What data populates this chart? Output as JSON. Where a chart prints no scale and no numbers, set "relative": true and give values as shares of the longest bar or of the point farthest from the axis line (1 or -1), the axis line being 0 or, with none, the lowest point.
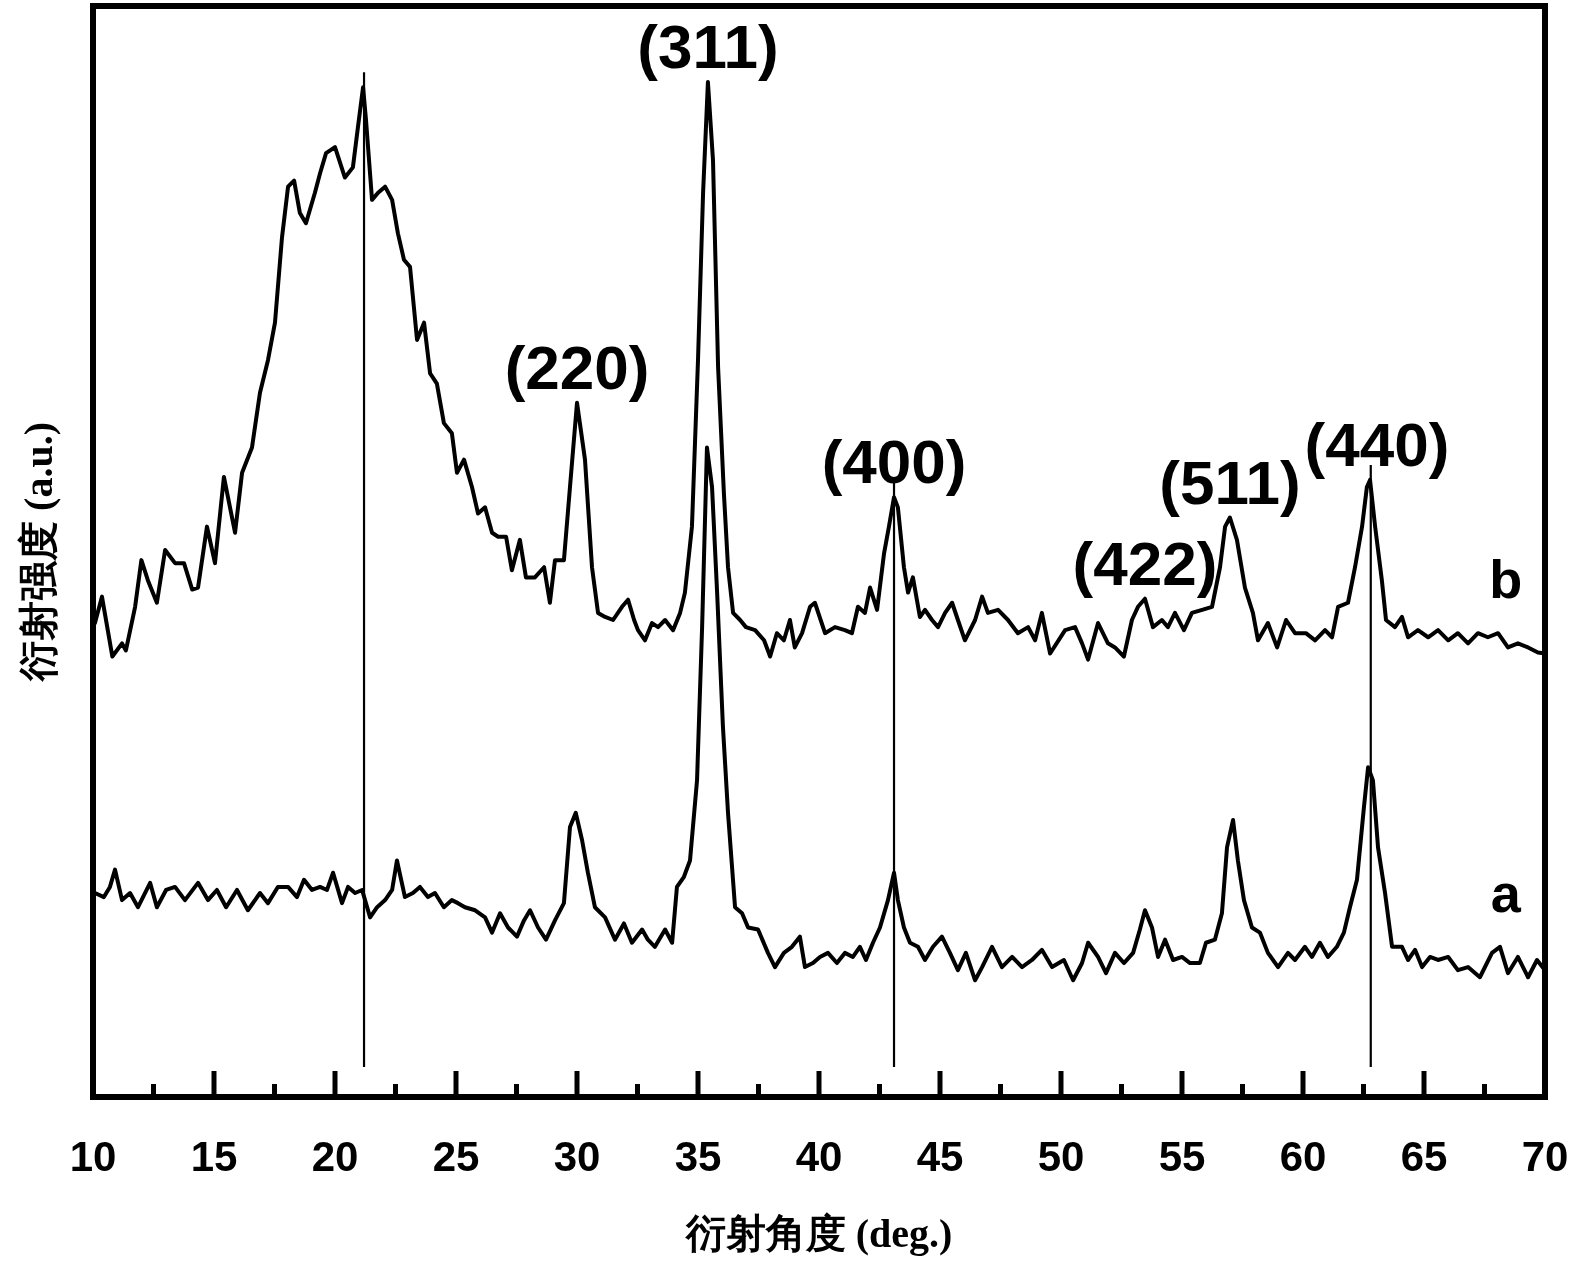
{
  "chart_data": {
    "type": "line",
    "xlabel": "衍射角度 (deg.)",
    "ylabel": "衍射强度 (a.u.)",
    "relative": true,
    "xlim": [
      10,
      70
    ],
    "xticks": [
      10,
      {
        "value": 12.5,
        "label": null
      },
      15,
      {
        "value": 17.5,
        "label": null
      },
      20,
      {
        "value": 22.5,
        "label": null
      },
      25,
      {
        "value": 27.5,
        "label": null
      },
      30,
      {
        "value": 32.5,
        "label": null
      },
      35,
      {
        "value": 37.5,
        "label": null
      },
      40,
      {
        "value": 42.5,
        "label": null
      },
      45,
      {
        "value": 47.5,
        "label": null
      },
      50,
      {
        "value": 52.5,
        "label": null
      },
      55,
      {
        "value": 57.5,
        "label": null
      },
      60,
      {
        "value": 62.5,
        "label": null
      },
      65,
      {
        "value": 67.5,
        "label": null
      },
      70
    ],
    "series": [
      {
        "name": "b",
        "color": "#000000",
        "x": [
          10.08,
          10.37,
          10.8,
          11.2,
          11.36,
          11.74,
          12.0,
          12.27,
          12.64,
          12.98,
          13.39,
          13.76,
          14.1,
          14.34,
          14.71,
          15.04,
          15.41,
          15.87,
          16.16,
          16.57,
          16.9,
          17.23,
          17.52,
          17.81,
          18.06,
          18.31,
          18.55,
          18.8,
          19.17,
          19.38,
          19.63,
          20.0,
          20.41,
          20.74,
          20.95,
          21.16,
          21.28,
          21.53,
          21.78,
          22.07,
          22.36,
          22.6,
          22.85,
          23.1,
          23.39,
          23.68,
          23.93,
          24.21,
          24.5,
          24.83,
          25.04,
          25.33,
          25.66,
          25.91,
          26.2,
          26.49,
          26.74,
          27.07,
          27.31,
          27.64,
          27.89,
          28.26,
          28.64,
          28.88,
          29.09,
          29.46,
          29.71,
          30.0,
          30.33,
          30.62,
          30.87,
          31.16,
          31.49,
          31.86,
          32.11,
          32.36,
          32.52,
          32.81,
          33.1,
          33.35,
          33.64,
          33.97,
          34.26,
          34.46,
          34.75,
          35.0,
          35.21,
          35.41,
          35.62,
          35.83,
          36.07,
          36.24,
          36.45,
          36.74,
          36.98,
          37.36,
          37.73,
          37.98,
          38.26,
          38.55,
          38.8,
          39.0,
          39.3,
          39.63,
          39.83,
          40.25,
          40.66,
          41.07,
          41.36,
          41.61,
          41.9,
          42.11,
          42.4,
          42.69,
          42.89,
          43.1,
          43.26,
          43.51,
          43.68,
          43.88,
          44.17,
          44.38,
          44.67,
          44.92,
          45.21,
          45.5,
          45.74,
          46.03,
          46.45,
          46.74,
          46.98,
          47.4,
          47.81,
          48.22,
          48.64,
          48.93,
          49.21,
          49.55,
          50.17,
          50.58,
          50.87,
          51.12,
          51.53,
          51.94,
          52.23,
          52.6,
          52.93,
          53.18,
          53.47,
          53.8,
          54.17,
          54.42,
          54.71,
          55.08,
          55.41,
          55.83,
          56.24,
          56.57,
          56.78,
          56.98,
          57.27,
          57.6,
          57.93,
          58.14,
          58.55,
          58.93,
          59.3,
          59.67,
          60.12,
          60.5,
          60.91,
          61.2,
          61.45,
          61.86,
          62.15,
          62.44,
          62.64,
          62.77,
          62.98,
          63.26,
          63.43,
          63.8,
          64.09,
          64.34,
          64.75,
          65.17,
          65.58,
          66.0,
          66.4,
          66.82,
          67.23,
          67.64,
          68.06,
          68.47,
          68.88,
          69.3,
          69.71,
          70.0
        ],
        "values": [
          0.467,
          0.493,
          0.434,
          0.447,
          0.44,
          0.483,
          0.529,
          0.509,
          0.487,
          0.539,
          0.526,
          0.526,
          0.5,
          0.502,
          0.562,
          0.526,
          0.611,
          0.556,
          0.615,
          0.64,
          0.694,
          0.726,
          0.763,
          0.847,
          0.897,
          0.903,
          0.871,
          0.861,
          0.891,
          0.91,
          0.93,
          0.936,
          0.906,
          0.916,
          0.956,
          0.995,
          0.963,
          0.884,
          0.891,
          0.897,
          0.884,
          0.851,
          0.825,
          0.818,
          0.746,
          0.763,
          0.713,
          0.703,
          0.664,
          0.654,
          0.615,
          0.628,
          0.601,
          0.575,
          0.581,
          0.556,
          0.552,
          0.552,
          0.519,
          0.549,
          0.512,
          0.512,
          0.522,
          0.487,
          0.529,
          0.529,
          0.601,
          0.684,
          0.628,
          0.522,
          0.477,
          0.473,
          0.47,
          0.483,
          0.49,
          0.47,
          0.46,
          0.45,
          0.467,
          0.463,
          0.47,
          0.46,
          0.477,
          0.497,
          0.562,
          0.726,
          0.891,
          1.0,
          0.923,
          0.719,
          0.595,
          0.522,
          0.477,
          0.47,
          0.463,
          0.46,
          0.45,
          0.434,
          0.457,
          0.45,
          0.47,
          0.443,
          0.457,
          0.483,
          0.487,
          0.457,
          0.463,
          0.46,
          0.457,
          0.483,
          0.477,
          0.502,
          0.48,
          0.536,
          0.562,
          0.591,
          0.581,
          0.522,
          0.497,
          0.512,
          0.473,
          0.48,
          0.47,
          0.463,
          0.477,
          0.487,
          0.47,
          0.45,
          0.47,
          0.493,
          0.477,
          0.48,
          0.47,
          0.457,
          0.463,
          0.45,
          0.477,
          0.437,
          0.46,
          0.463,
          0.447,
          0.431,
          0.467,
          0.447,
          0.443,
          0.434,
          0.47,
          0.483,
          0.491,
          0.463,
          0.47,
          0.463,
          0.477,
          0.46,
          0.477,
          0.48,
          0.483,
          0.522,
          0.562,
          0.571,
          0.549,
          0.502,
          0.477,
          0.45,
          0.467,
          0.443,
          0.47,
          0.457,
          0.457,
          0.45,
          0.46,
          0.453,
          0.483,
          0.487,
          0.522,
          0.562,
          0.601,
          0.608,
          0.562,
          0.509,
          0.47,
          0.463,
          0.473,
          0.453,
          0.46,
          0.453,
          0.46,
          0.45,
          0.457,
          0.447,
          0.457,
          0.453,
          0.457,
          0.443,
          0.447,
          0.443,
          0.438,
          0.437
        ]
      },
      {
        "name": "a",
        "color": "#000000",
        "x": [
          10.08,
          10.45,
          10.7,
          10.91,
          11.2,
          11.53,
          11.86,
          12.36,
          12.64,
          13.02,
          13.39,
          13.8,
          14.34,
          14.75,
          15.12,
          15.5,
          15.95,
          16.4,
          16.9,
          17.23,
          17.64,
          18.06,
          18.43,
          18.72,
          19.05,
          19.38,
          19.67,
          19.92,
          20.29,
          20.54,
          20.83,
          21.12,
          21.45,
          21.74,
          22.07,
          22.36,
          22.56,
          22.89,
          23.22,
          23.51,
          23.84,
          24.13,
          24.5,
          24.83,
          25.08,
          25.37,
          25.79,
          26.2,
          26.49,
          26.82,
          27.15,
          27.52,
          27.81,
          28.06,
          28.39,
          28.72,
          29.09,
          29.46,
          29.71,
          29.95,
          30.21,
          30.45,
          30.74,
          31.16,
          31.57,
          31.94,
          32.27,
          32.69,
          32.93,
          33.22,
          33.64,
          33.93,
          34.13,
          34.42,
          34.67,
          34.96,
          35.17,
          35.37,
          35.58,
          35.79,
          36.03,
          36.24,
          36.53,
          36.82,
          37.07,
          37.48,
          37.89,
          38.18,
          38.55,
          38.88,
          39.21,
          39.42,
          39.75,
          40.04,
          40.37,
          40.74,
          41.07,
          41.4,
          41.69,
          41.94,
          42.23,
          42.52,
          42.85,
          43.1,
          43.26,
          43.51,
          43.76,
          44.09,
          44.38,
          44.71,
          45.08,
          45.41,
          45.74,
          46.07,
          46.45,
          46.74,
          47.15,
          47.56,
          47.98,
          48.39,
          48.8,
          49.21,
          49.63,
          50.12,
          50.5,
          50.87,
          51.12,
          51.53,
          51.86,
          52.23,
          52.6,
          52.98,
          53.26,
          53.47,
          53.76,
          54.01,
          54.3,
          54.63,
          55.0,
          55.33,
          55.74,
          55.99,
          56.36,
          56.65,
          56.86,
          57.11,
          57.31,
          57.56,
          57.89,
          58.22,
          58.55,
          58.97,
          59.38,
          59.67,
          60.08,
          60.37,
          60.7,
          61.03,
          61.4,
          61.69,
          61.94,
          62.23,
          62.52,
          62.69,
          62.89,
          63.1,
          63.39,
          63.68,
          64.09,
          64.34,
          64.63,
          64.92,
          65.25,
          65.58,
          66.0,
          66.4,
          66.82,
          67.31,
          67.81,
          68.14,
          68.47,
          68.88,
          69.3,
          69.67,
          70.0
        ],
        "values": [
          0.201,
          0.197,
          0.207,
          0.224,
          0.194,
          0.201,
          0.187,
          0.211,
          0.187,
          0.204,
          0.207,
          0.194,
          0.211,
          0.194,
          0.204,
          0.187,
          0.204,
          0.184,
          0.201,
          0.191,
          0.207,
          0.207,
          0.197,
          0.214,
          0.204,
          0.207,
          0.204,
          0.221,
          0.191,
          0.207,
          0.201,
          0.204,
          0.177,
          0.187,
          0.194,
          0.204,
          0.233,
          0.197,
          0.201,
          0.207,
          0.197,
          0.201,
          0.187,
          0.194,
          0.191,
          0.187,
          0.184,
          0.177,
          0.162,
          0.181,
          0.167,
          0.158,
          0.174,
          0.184,
          0.167,
          0.155,
          0.174,
          0.191,
          0.266,
          0.28,
          0.253,
          0.221,
          0.187,
          0.177,
          0.155,
          0.171,
          0.152,
          0.165,
          0.155,
          0.148,
          0.165,
          0.152,
          0.207,
          0.217,
          0.233,
          0.312,
          0.463,
          0.64,
          0.601,
          0.497,
          0.365,
          0.28,
          0.187,
          0.181,
          0.167,
          0.165,
          0.142,
          0.128,
          0.142,
          0.148,
          0.158,
          0.128,
          0.132,
          0.138,
          0.142,
          0.132,
          0.142,
          0.138,
          0.148,
          0.135,
          0.152,
          0.167,
          0.194,
          0.221,
          0.194,
          0.167,
          0.152,
          0.148,
          0.135,
          0.148,
          0.158,
          0.142,
          0.125,
          0.142,
          0.115,
          0.128,
          0.148,
          0.128,
          0.138,
          0.128,
          0.135,
          0.145,
          0.128,
          0.135,
          0.115,
          0.132,
          0.152,
          0.138,
          0.122,
          0.142,
          0.132,
          0.142,
          0.165,
          0.184,
          0.167,
          0.138,
          0.155,
          0.135,
          0.138,
          0.132,
          0.132,
          0.152,
          0.155,
          0.181,
          0.246,
          0.273,
          0.233,
          0.194,
          0.167,
          0.162,
          0.142,
          0.128,
          0.142,
          0.135,
          0.148,
          0.138,
          0.152,
          0.138,
          0.148,
          0.162,
          0.187,
          0.214,
          0.286,
          0.325,
          0.312,
          0.246,
          0.201,
          0.148,
          0.148,
          0.135,
          0.145,
          0.128,
          0.138,
          0.135,
          0.138,
          0.125,
          0.128,
          0.118,
          0.142,
          0.148,
          0.122,
          0.138,
          0.118,
          0.135,
          0.125
        ]
      }
    ],
    "ref_lines": [
      {
        "axis": "x",
        "value": 21.2
      },
      {
        "axis": "x",
        "value": 43.1
      },
      {
        "axis": "x",
        "value": 62.8
      }
    ],
    "annotations": [
      {
        "text": "(220)",
        "x": 30.0,
        "y": 0.684
      },
      {
        "text": "(311)",
        "x": 35.41,
        "y": 1.0
      },
      {
        "text": "(400)",
        "x": 43.1,
        "y": 0.591
      },
      {
        "text": "(422)",
        "x": 53.47,
        "y": 0.491
      },
      {
        "text": "(511)",
        "x": 56.98,
        "y": 0.571
      },
      {
        "text": "(440)",
        "x": 62.77,
        "y": 0.608
      }
    ]
  }
}
